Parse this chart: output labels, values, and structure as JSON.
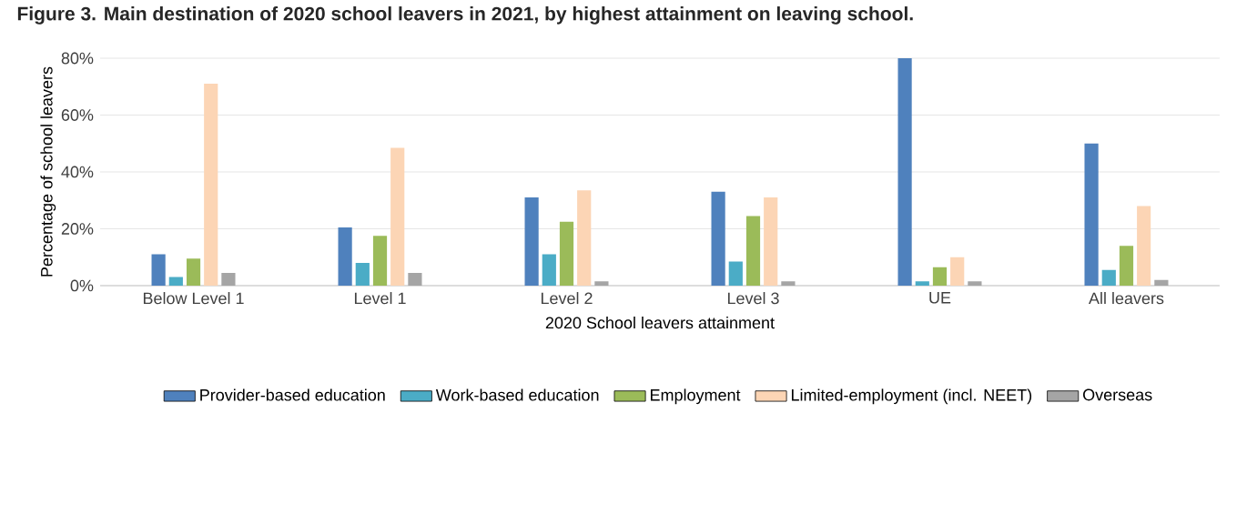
{
  "chart_data": {
    "type": "bar",
    "title": "Figure 3. Main destination of 2020 school leavers in 2021, by highest attainment on leaving school.",
    "xlabel": "2020 School leavers attainment",
    "ylabel": "Percentage of school leavers",
    "categories": [
      "Below Level 1",
      "Level 1",
      "Level 2",
      "Level 3",
      "UE",
      "All leavers"
    ],
    "series": [
      {
        "name": "Provider-based education",
        "color": "#4f81bd",
        "values": [
          11,
          20.5,
          31,
          33,
          80,
          50
        ]
      },
      {
        "name": "Work-based education",
        "color": "#4bacc6",
        "values": [
          3,
          8,
          11,
          8.5,
          1.5,
          5.5
        ]
      },
      {
        "name": "Employment",
        "color": "#9bbb59",
        "values": [
          9.5,
          17.5,
          22.5,
          24.5,
          6.5,
          14
        ]
      },
      {
        "name": "Limited-employment (incl. NEET)",
        "color": "#fcd5b5",
        "values": [
          71,
          48.5,
          33.5,
          31,
          10,
          28
        ]
      },
      {
        "name": "Overseas",
        "color": "#a5a5a5",
        "values": [
          4.5,
          4.5,
          1.5,
          1.5,
          1.5,
          2
        ]
      }
    ],
    "ylim": [
      0,
      80
    ],
    "yticks": [
      {
        "value": 0,
        "label": "0%"
      },
      {
        "value": 20,
        "label": "20%"
      },
      {
        "value": 40,
        "label": "40%"
      },
      {
        "value": 60,
        "label": "60%"
      },
      {
        "value": 80,
        "label": "80%"
      }
    ],
    "grid": "y",
    "legend": "bottom"
  }
}
